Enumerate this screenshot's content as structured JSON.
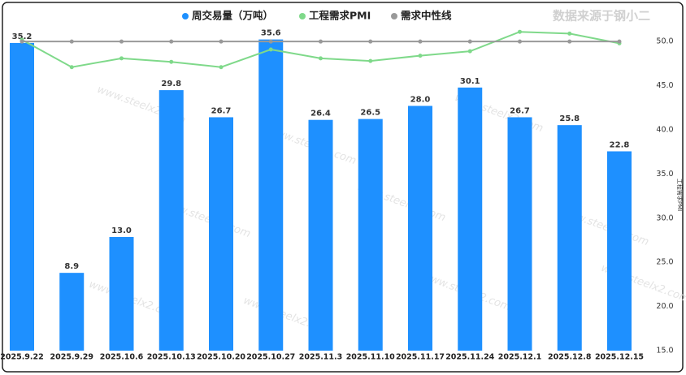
{
  "chart_data": {
    "type": "bar",
    "source_note": "数据来源于钢小二",
    "watermark": "www.steelx2.com",
    "y2label": "工程需求PMI",
    "categories": [
      "2025.9.22",
      "2025.9.29",
      "2025.10.6",
      "2025.10.13",
      "2025.10.20",
      "2025.10.27",
      "2025.11.3",
      "2025.11.10",
      "2025.11.17",
      "2025.11.24",
      "2025.12.1",
      "2025.12.8",
      "2025.12.15"
    ],
    "series": [
      {
        "name": "周交易量（万吨）",
        "type": "bar",
        "axis": "y",
        "color": "#1e90ff",
        "values": [
          35.2,
          8.9,
          13.0,
          29.8,
          26.7,
          35.6,
          26.4,
          26.5,
          28.0,
          30.1,
          26.7,
          25.8,
          22.8
        ],
        "value_labels": [
          "35.2",
          "8.9",
          "13.0",
          "29.8",
          "26.7",
          "35.6",
          "26.4",
          "26.5",
          "28.0",
          "30.1",
          "26.7",
          "25.8",
          "22.8"
        ]
      },
      {
        "name": "工程需求PMI",
        "type": "line",
        "axis": "y2",
        "color": "#7fd98a",
        "values": [
          50.2,
          47.1,
          48.1,
          47.7,
          47.1,
          49.1,
          48.1,
          47.8,
          48.4,
          48.9,
          51.1,
          50.9,
          49.8
        ]
      },
      {
        "name": "需求中性线",
        "type": "line",
        "axis": "y2",
        "color": "#999999",
        "values": [
          50,
          50,
          50,
          50,
          50,
          50,
          50,
          50,
          50,
          50,
          50,
          50,
          50
        ]
      }
    ],
    "ylim": [
      0,
      39
    ],
    "y2lim": [
      15,
      53.6
    ],
    "y2ticks": [
      {
        "value": 15,
        "label": "15.0"
      },
      {
        "value": 20,
        "label": "20.0"
      },
      {
        "value": 25,
        "label": "25.0"
      },
      {
        "value": 30,
        "label": "30.0"
      },
      {
        "value": 35,
        "label": "35.0"
      },
      {
        "value": 40,
        "label": "40.0"
      },
      {
        "value": 45,
        "label": "45.0"
      },
      {
        "value": 50,
        "label": "50.0"
      }
    ]
  }
}
